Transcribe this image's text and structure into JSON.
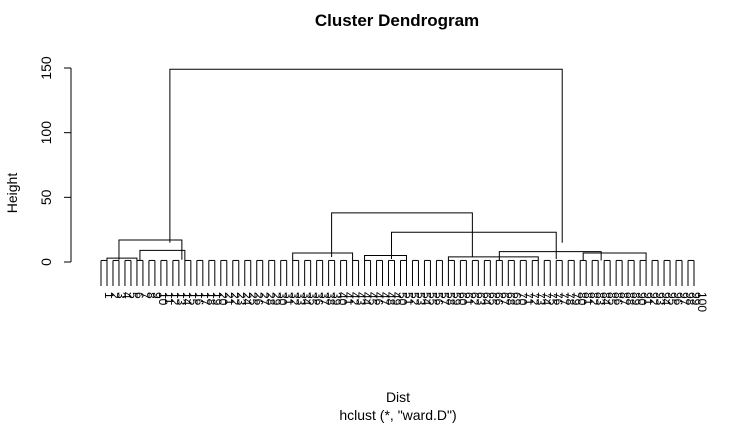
{
  "chart_data": {
    "type": "dendrogram",
    "title": "Cluster Dendrogram",
    "ylabel": "Height",
    "xlabel": "Dist",
    "subtitle": "hclust (*, \"ward.D\")",
    "ylim": [
      0,
      150
    ],
    "yticks": [
      0,
      50,
      100,
      150
    ],
    "n_leaves": 100,
    "merges": [
      {
        "height": 149,
        "span": [
          12.5,
          78
        ]
      },
      {
        "height": 38,
        "span": [
          39.5,
          63
        ]
      },
      {
        "height": 23,
        "span": [
          49.5,
          77
        ]
      },
      {
        "height": 17,
        "span": [
          4,
          14.5
        ]
      },
      {
        "height": 9,
        "span": [
          7.5,
          15
        ]
      },
      {
        "height": 8,
        "span": [
          67.5,
          84.5
        ]
      },
      {
        "height": 7,
        "span": [
          81.5,
          92
        ]
      },
      {
        "height": 7,
        "span": [
          33,
          43
        ]
      },
      {
        "height": 5,
        "span": [
          45,
          52
        ]
      },
      {
        "height": 4,
        "span": [
          59,
          74
        ]
      },
      {
        "height": 3,
        "span": [
          2,
          7
        ]
      }
    ]
  }
}
